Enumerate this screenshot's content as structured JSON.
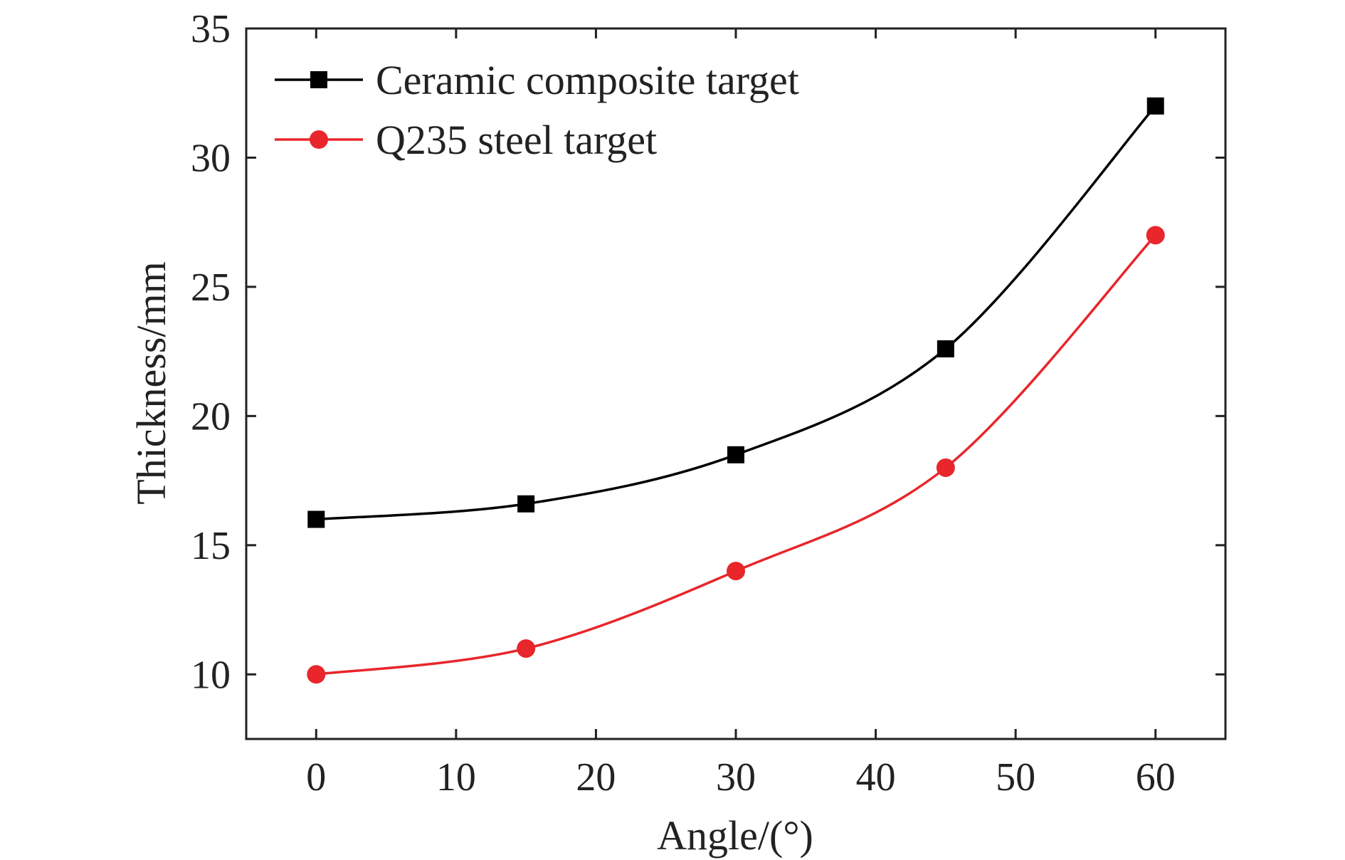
{
  "chart_data": {
    "type": "line",
    "xlabel": "Angle/(°)",
    "ylabel": "Thickness/mm",
    "xlim": [
      -5,
      65
    ],
    "ylim": [
      7.5,
      35
    ],
    "xticks": [
      0,
      10,
      20,
      30,
      40,
      50,
      60
    ],
    "yticks": [
      10,
      15,
      20,
      25,
      30,
      35
    ],
    "grid": false,
    "legend_position": "top-left",
    "x": [
      0,
      15,
      30,
      45,
      60
    ],
    "series": [
      {
        "name": "Ceramic composite target",
        "values": [
          16,
          16.6,
          18.5,
          22.6,
          32
        ],
        "color": "#000000",
        "marker": "square"
      },
      {
        "name": "Q235 steel target",
        "values": [
          10,
          11,
          14,
          18,
          27
        ],
        "color": "#e8262b",
        "marker": "circle"
      }
    ]
  }
}
